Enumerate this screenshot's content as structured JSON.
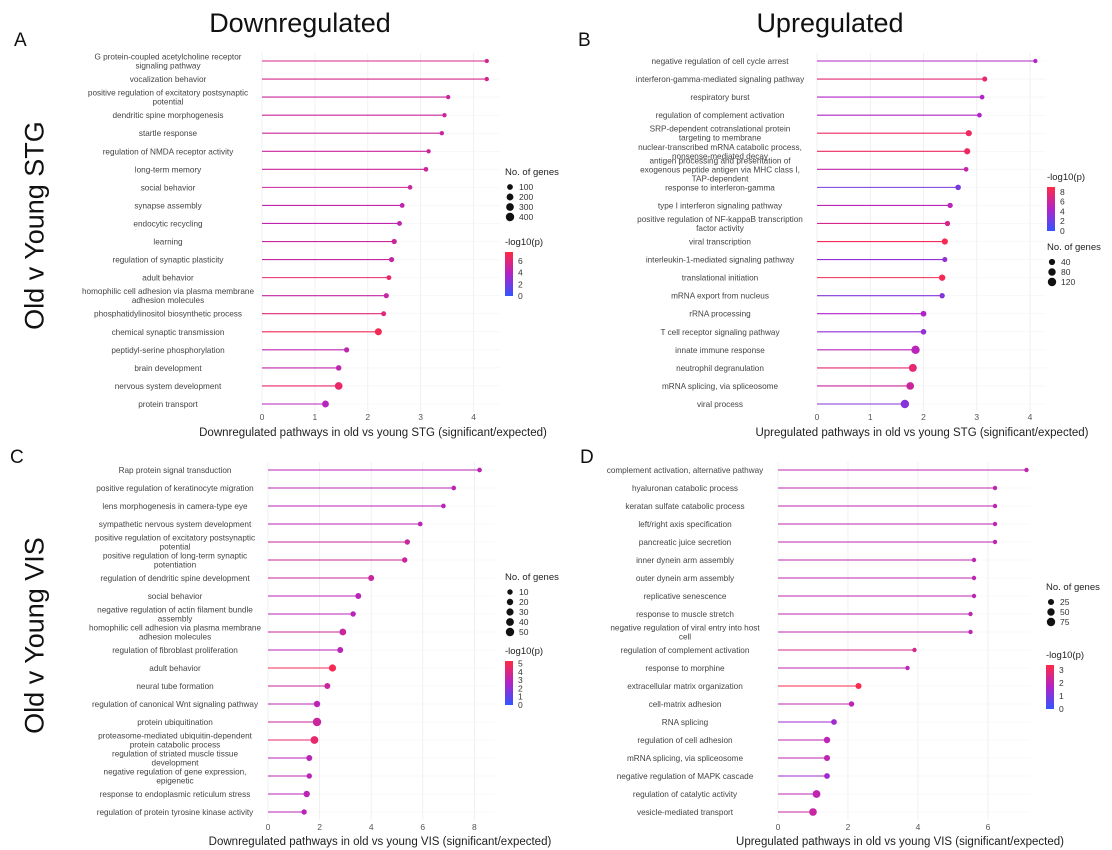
{
  "labels": {
    "col_left": "Downregulated",
    "col_right": "Upregulated",
    "row_top": "Old v Young STG",
    "row_bottom": "Old v Young VIS"
  },
  "chart_data": [
    {
      "panel": "A",
      "type": "lollipop",
      "xlabel": "Downregulated pathways in old vs young STG (significant/expected)",
      "xticks": [
        0,
        1,
        2,
        3,
        4
      ],
      "xlim": [
        0,
        4.5
      ],
      "size_legend": {
        "title": "No. of genes",
        "values": [
          100,
          200,
          300,
          400
        ]
      },
      "color_legend": {
        "title": "-log10(p)",
        "ticks": [
          6,
          4,
          2,
          0
        ],
        "range": [
          0,
          7.5
        ]
      },
      "categories": [
        "G protein-coupled acetylcholine receptor signaling pathway",
        "vocalization behavior",
        "positive regulation of excitatory postsynaptic potential",
        "dendritic spine morphogenesis",
        "startle response",
        "regulation of NMDA receptor activity",
        "long-term memory",
        "social behavior",
        "synapse assembly",
        "endocytic recycling",
        "learning",
        "regulation of synaptic plasticity",
        "adult behavior",
        "homophilic cell adhesion via plasma membrane adhesion molecules",
        "phosphatidylinositol biosynthetic process",
        "chemical synaptic transmission",
        "peptidyl-serine phosphorylation",
        "brain development",
        "nervous system development",
        "protein transport"
      ],
      "values": [
        4.25,
        4.25,
        3.52,
        3.45,
        3.4,
        3.15,
        3.1,
        2.8,
        2.65,
        2.6,
        2.5,
        2.45,
        2.4,
        2.35,
        2.3,
        2.2,
        1.6,
        1.45,
        1.45,
        1.2
      ],
      "neglog10p": [
        5.5,
        5.5,
        5.0,
        5.0,
        5.0,
        5.0,
        5.0,
        5.0,
        4.5,
        4.5,
        5.0,
        4.8,
        6.5,
        4.8,
        6.0,
        7.0,
        4.5,
        4.5,
        6.5,
        4.0
      ],
      "genes": [
        20,
        20,
        20,
        20,
        20,
        20,
        30,
        30,
        40,
        40,
        60,
        60,
        40,
        60,
        50,
        220,
        60,
        80,
        300,
        200
      ]
    },
    {
      "panel": "B",
      "type": "lollipop",
      "xlabel": "Upregulated pathways in old vs young STG (significant/expected)",
      "xticks": [
        0,
        1,
        2,
        3,
        4
      ],
      "xlim": [
        0,
        4.3
      ],
      "size_legend": {
        "title": "No. of genes",
        "values": [
          40,
          80,
          120
        ]
      },
      "color_legend": {
        "title": "-log10(p)",
        "ticks": [
          8,
          6,
          4,
          2,
          0
        ],
        "range": [
          0,
          9
        ]
      },
      "categories": [
        "negative regulation of cell cycle arrest",
        "interferon-gamma-mediated signaling pathway",
        "respiratory burst",
        "regulation of complement activation",
        "SRP-dependent cotranslational protein targeting to membrane",
        "nuclear-transcribed mRNA catabolic process, nonsense-mediated decay",
        "antigen processing and presentation of exogenous peptide antigen via MHC class I, TAP-dependent",
        "response to interferon-gamma",
        "type I interferon signaling pathway",
        "positive regulation of NF-kappaB transcription factor activity",
        "viral transcription",
        "interleukin-1-mediated signaling pathway",
        "translational initiation",
        "mRNA export from nucleus",
        "rRNA processing",
        "T cell receptor signaling pathway",
        "innate immune response",
        "neutrophil degranulation",
        "mRNA splicing, via spliceosome",
        "viral process"
      ],
      "values": [
        4.1,
        3.15,
        3.1,
        3.05,
        2.85,
        2.82,
        2.8,
        2.65,
        2.5,
        2.45,
        2.4,
        2.4,
        2.35,
        2.35,
        2.0,
        2.0,
        1.85,
        1.8,
        1.75,
        1.65
      ],
      "neglog10p": [
        4.5,
        7.5,
        4.5,
        4.5,
        8.0,
        8.0,
        5.5,
        2.5,
        5.0,
        6.5,
        8.5,
        3.5,
        8.5,
        3.0,
        4.5,
        3.5,
        5.0,
        7.5,
        6.0,
        3.0
      ],
      "genes": [
        5,
        15,
        10,
        10,
        40,
        40,
        10,
        25,
        20,
        20,
        40,
        15,
        45,
        20,
        30,
        25,
        120,
        100,
        90,
        150
      ]
    },
    {
      "panel": "C",
      "type": "lollipop",
      "xlabel": "Downregulated pathways in old vs young VIS (significant/expected)",
      "xticks": [
        0,
        2,
        4,
        6,
        8
      ],
      "xlim": [
        0,
        8.8
      ],
      "size_legend": {
        "title": "No. of genes",
        "values": [
          10,
          20,
          30,
          40,
          50
        ]
      },
      "color_legend": {
        "title": "-log10(p)",
        "ticks": [
          5,
          4,
          3,
          2,
          1,
          0
        ],
        "range": [
          0,
          5.3
        ]
      },
      "categories": [
        "Rap protein signal transduction",
        "positive regulation of keratinocyte migration",
        "lens morphogenesis in camera-type eye",
        "sympathetic nervous system development",
        "positive regulation of excitatory postsynaptic potential",
        "positive regulation of long-term synaptic potentiation",
        "regulation of dendritic spine development",
        "social behavior",
        "negative regulation of actin filament bundle assembly",
        "homophilic cell adhesion via plasma membrane adhesion molecules",
        "regulation of fibroblast proliferation",
        "adult behavior",
        "neural tube formation",
        "regulation of canonical Wnt signaling pathway",
        "protein ubiquitination",
        "proteasome-mediated ubiquitin-dependent protein catabolic process",
        "regulation of striated muscle tissue development",
        "negative regulation of gene expression, epigenetic",
        "response to endoplasmic reticulum stress",
        "regulation of protein tyrosine kinase activity"
      ],
      "values": [
        8.2,
        7.2,
        6.8,
        5.9,
        5.4,
        5.3,
        4.0,
        3.5,
        3.3,
        2.9,
        2.8,
        2.5,
        2.3,
        1.9,
        1.9,
        1.8,
        1.6,
        1.6,
        1.5,
        1.4
      ],
      "neglog10p": [
        3.0,
        3.0,
        3.0,
        3.0,
        3.5,
        3.5,
        3.5,
        3.0,
        3.0,
        3.5,
        3.0,
        5.0,
        3.5,
        3.0,
        3.5,
        4.5,
        3.0,
        3.0,
        3.0,
        3.0
      ],
      "genes": [
        5,
        5,
        5,
        5,
        10,
        10,
        15,
        15,
        10,
        25,
        15,
        30,
        15,
        20,
        50,
        40,
        15,
        10,
        20,
        10
      ]
    },
    {
      "panel": "D",
      "type": "lollipop",
      "xlabel": "Upregulated pathways in old vs young VIS (significant/expected)",
      "xticks": [
        0,
        2,
        4,
        6
      ],
      "xlim": [
        0,
        7.2
      ],
      "size_legend": {
        "title": "No. of genes",
        "values": [
          25,
          50,
          75
        ]
      },
      "color_legend": {
        "title": "-log10(p)",
        "ticks": [
          3,
          2,
          1,
          0
        ],
        "range": [
          0,
          3.4
        ]
      },
      "categories": [
        "complement activation, alternative pathway",
        "hyaluronan catabolic process",
        "keratan sulfate catabolic process",
        "left/right axis specification",
        "pancreatic juice secretion",
        "inner dynein arm assembly",
        "outer dynein arm assembly",
        "replicative senescence",
        "response to muscle stretch",
        "negative regulation of viral entry into host cell",
        "regulation of complement activation",
        "response to morphine",
        "extracellular matrix organization",
        "cell-matrix adhesion",
        "RNA splicing",
        "regulation of cell adhesion",
        "mRNA splicing, via spliceosome",
        "negative regulation of MAPK cascade",
        "regulation of catalytic activity",
        "vesicle-mediated transport"
      ],
      "values": [
        7.1,
        6.2,
        6.2,
        6.2,
        6.2,
        5.6,
        5.6,
        5.6,
        5.5,
        5.5,
        3.9,
        3.7,
        2.3,
        2.1,
        1.6,
        1.4,
        1.4,
        1.4,
        1.1,
        1.0
      ],
      "neglog10p": [
        2.0,
        2.0,
        2.0,
        2.0,
        2.0,
        2.0,
        2.0,
        2.0,
        2.0,
        2.0,
        2.5,
        2.0,
        3.3,
        2.0,
        1.5,
        2.0,
        2.0,
        1.5,
        2.0,
        2.2
      ],
      "genes": [
        5,
        5,
        5,
        5,
        5,
        5,
        5,
        5,
        5,
        5,
        5,
        5,
        25,
        15,
        20,
        30,
        25,
        20,
        60,
        55
      ]
    }
  ]
}
